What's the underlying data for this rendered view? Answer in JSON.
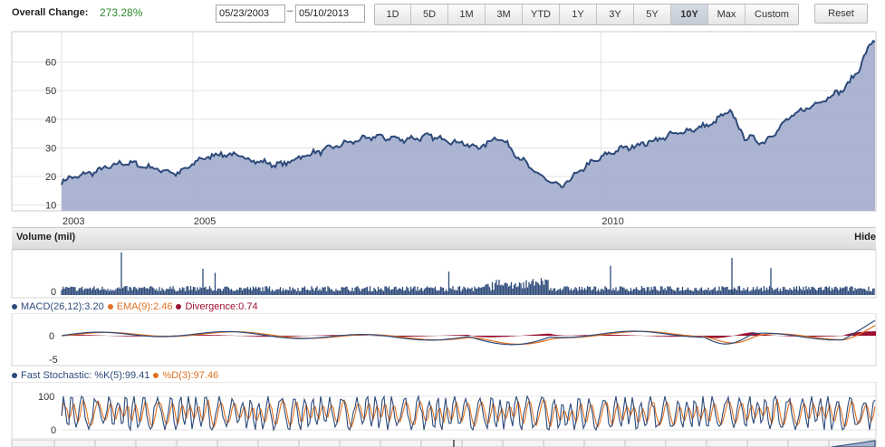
{
  "header": {
    "overall_change_label": "Overall Change:",
    "overall_change_value": "273.28%",
    "date_from": "05/23/2003",
    "date_separator": "–",
    "date_to": "05/10/2013",
    "ranges": [
      "1D",
      "5D",
      "1M",
      "3M",
      "YTD",
      "1Y",
      "3Y",
      "5Y",
      "10Y",
      "Max",
      "Custom"
    ],
    "active_range": "10Y",
    "reset_label": "Reset"
  },
  "price_chart": {
    "y_ticks": [
      60,
      50,
      40,
      30,
      20,
      10
    ],
    "x_ticks": [
      "2003",
      "2005",
      "2010"
    ],
    "line_color": "#2d4a7a",
    "fill_color": "#a7b1cf"
  },
  "volume": {
    "title": "Volume (mil)",
    "hide_label": "Hide",
    "y_tick": "0",
    "bar_color": "#2d4a7a"
  },
  "macd": {
    "label_macd": "MACD(26,12):3.20",
    "label_ema": "EMA(9):2.46",
    "label_div": "Divergence:0.74",
    "y_ticks": [
      "0",
      "-5"
    ],
    "macd_color": "#2d4a7a",
    "ema_color": "#e07020",
    "div_color": "#9b1030"
  },
  "stochastic": {
    "label_k": "Fast Stochastic: %K(5):99.41",
    "label_d": "%D(3):97.46",
    "y_ticks": [
      "100",
      "0"
    ],
    "k_color": "#2d4a7a",
    "d_color": "#e07020"
  },
  "chart_data": {
    "type": "area",
    "x": [
      "2003-05",
      "2003-08",
      "2003-11",
      "2004-03",
      "2004-07",
      "2004-11",
      "2005-02",
      "2005-05",
      "2005-08",
      "2005-11",
      "2006-02",
      "2006-05",
      "2006-08",
      "2006-12",
      "2007-04",
      "2007-08",
      "2007-12",
      "2008-04",
      "2008-07",
      "2008-10",
      "2009-03",
      "2009-07",
      "2009-11",
      "2010-03",
      "2010-08",
      "2010-12",
      "2011-05",
      "2011-08",
      "2011-10",
      "2012-01",
      "2012-05",
      "2012-09",
      "2013-01",
      "2013-03",
      "2013-05"
    ],
    "series": [
      {
        "values": [
          18,
          20,
          22,
          25,
          23,
          21,
          26,
          28,
          27,
          25,
          24,
          27,
          29,
          32,
          34,
          33,
          34,
          32,
          30,
          34,
          22,
          16,
          24,
          29,
          32,
          35,
          38,
          43,
          34,
          32,
          41,
          46,
          51,
          58,
          68
        ]
      }
    ],
    "ylim": [
      8,
      70
    ],
    "xlabel": "",
    "ylabel": "",
    "grid": true
  }
}
